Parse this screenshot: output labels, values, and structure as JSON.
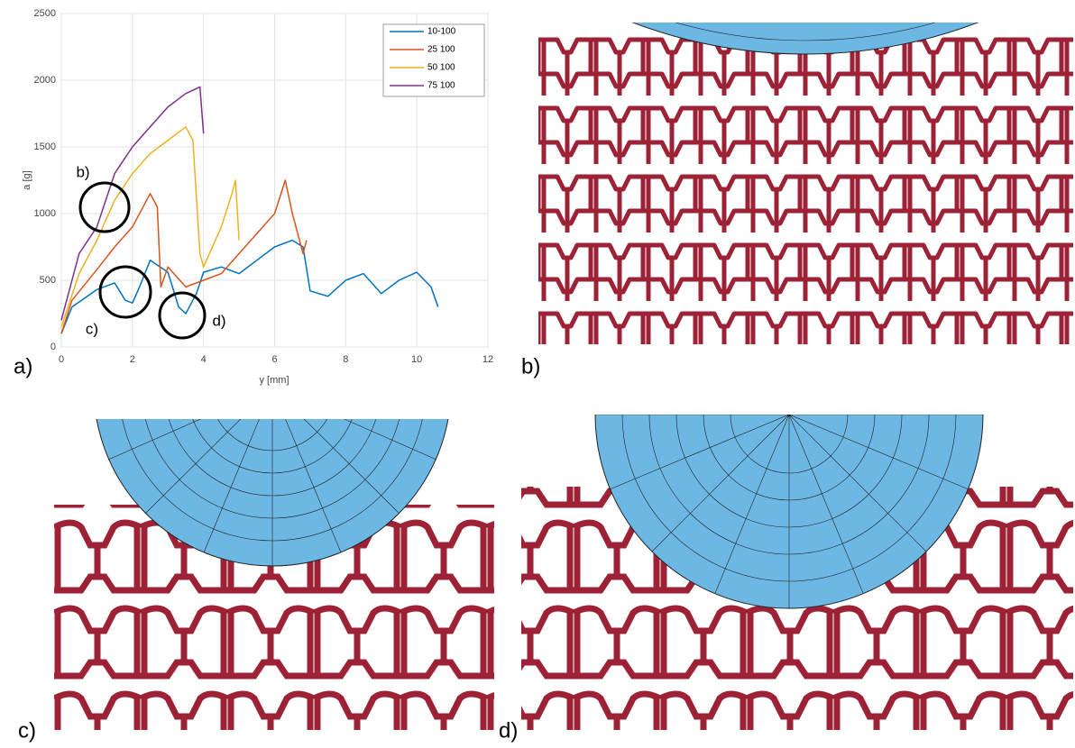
{
  "chart_data": {
    "type": "line",
    "xlabel": "y [mm]",
    "ylabel": "a [g]",
    "xlim": [
      0,
      12
    ],
    "xticks": [
      0,
      2,
      4,
      6,
      8,
      10,
      12
    ],
    "ylim": [
      0,
      2500
    ],
    "yticks": [
      0,
      500,
      1000,
      1500,
      2000,
      2500
    ],
    "grid": true,
    "legend": "upper right",
    "annotations": [
      "b)",
      "c)",
      "d)"
    ],
    "series": [
      {
        "name": "10-100",
        "color": "#0072bd",
        "x": [
          0,
          0.3,
          1,
          1.5,
          1.8,
          2,
          2.2,
          2.5,
          3,
          3.3,
          3.5,
          3.8,
          4,
          4.5,
          5,
          5.5,
          6,
          6.5,
          6.8,
          7,
          7.5,
          8,
          8.5,
          9,
          9.5,
          10,
          10.4,
          10.6
        ],
        "values": [
          100,
          300,
          430,
          480,
          350,
          330,
          450,
          650,
          560,
          300,
          250,
          400,
          560,
          600,
          550,
          650,
          750,
          800,
          750,
          420,
          380,
          500,
          550,
          400,
          500,
          560,
          450,
          300
        ]
      },
      {
        "name": "25 100",
        "color": "#d95319",
        "x": [
          0,
          0.3,
          1,
          1.5,
          2,
          2.5,
          2.7,
          2.8,
          3,
          3.5,
          4,
          4.5,
          5,
          5.5,
          6,
          6.3,
          6.5,
          6.8,
          6.9
        ],
        "values": [
          100,
          350,
          580,
          750,
          900,
          1150,
          1050,
          450,
          600,
          450,
          500,
          550,
          700,
          850,
          1000,
          1250,
          1000,
          700,
          800
        ]
      },
      {
        "name": "50 100",
        "color": "#edb120",
        "x": [
          0,
          0.5,
          1,
          1.5,
          2,
          2.5,
          3,
          3.5,
          3.7,
          3.9,
          4,
          4.5,
          4.8,
          4.9,
          5
        ],
        "values": [
          150,
          550,
          800,
          1100,
          1300,
          1450,
          1550,
          1650,
          1550,
          700,
          600,
          900,
          1150,
          1250,
          800
        ]
      },
      {
        "name": "75 100",
        "color": "#7e2f8e",
        "x": [
          0,
          0.5,
          1,
          1.5,
          2,
          2.5,
          3,
          3.5,
          3.9,
          4
        ],
        "values": [
          200,
          700,
          900,
          1300,
          1500,
          1650,
          1800,
          1900,
          1950,
          1600
        ]
      }
    ]
  },
  "panels": [
    "a)",
    "b)",
    "c)",
    "d)"
  ]
}
